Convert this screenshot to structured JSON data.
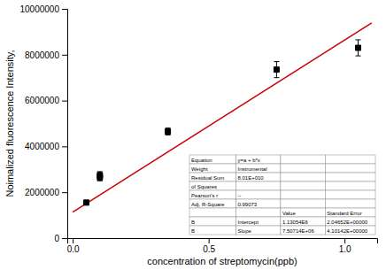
{
  "chart_data": {
    "type": "scatter",
    "xlabel": "concentration of streptomycin(ppb)",
    "ylabel": "Noimalized fluorescence Intensity,",
    "xlim": [
      -0.02,
      1.12
    ],
    "ylim": [
      0,
      10000000
    ],
    "xticks": [
      {
        "value": 0,
        "label": "0.0"
      },
      0.5,
      {
        "value": 1,
        "label": "1.0"
      }
    ],
    "yticks": [
      0,
      2000000,
      4000000,
      6000000,
      8000000,
      10000000
    ],
    "series": [
      {
        "type": "scatter",
        "marker": "square",
        "color": "black",
        "x": [
          0.05,
          0.1,
          0.1,
          0.35,
          0.75,
          1.05
        ],
        "values": [
          1550000,
          2650000,
          2750000,
          4650000,
          7350000,
          8300000
        ],
        "errors": [
          100000,
          150000,
          150000,
          150000,
          350000,
          350000
        ]
      },
      {
        "type": "line",
        "line_style": "solid",
        "color": "#cc0000",
        "x": [
          0.0,
          1.1
        ],
        "values": [
          1130000,
          9387857.3
        ]
      }
    ],
    "table": [
      [
        "Equation",
        "y=a + b*x",
        null,
        null
      ],
      [
        "Weight",
        "Instrumental",
        null,
        null
      ],
      [
        "Residual Sum",
        "8.01E+010",
        null,
        null
      ],
      [
        "of Squares",
        null,
        null,
        null
      ],
      [
        "Pearson's r",
        "--",
        null,
        null
      ],
      [
        "Adj. R-Square",
        "0.99073",
        null,
        null
      ],
      [
        null,
        null,
        "Value",
        "Standard Error"
      ],
      [
        "B",
        "Intercept",
        "1.13054E6",
        "2.04652E+00000"
      ],
      [
        "B",
        "Slope",
        "7.50714E+06",
        "4.10142E+00000"
      ]
    ]
  }
}
